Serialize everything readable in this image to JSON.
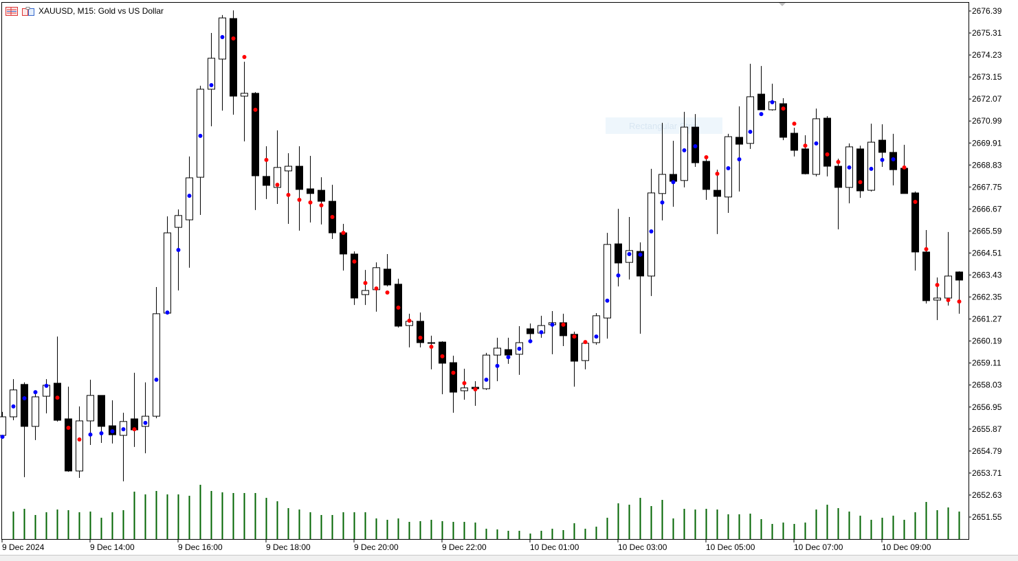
{
  "header": {
    "symbol_title": "XAUUSD, M15:  Gold vs US Dollar",
    "icons": [
      "chart-list-icon",
      "chart-type-icon"
    ]
  },
  "annotation": {
    "label": "Rectangular Strip"
  },
  "colors": {
    "bull_body": "#ffffff",
    "bear_body": "#000000",
    "wick": "#000000",
    "dot_up": "#0000ff",
    "dot_down": "#ff0000",
    "volume": "#006400"
  },
  "chart_data": {
    "type": "candlestick",
    "symbol": "XAUUSD",
    "timeframe": "M15",
    "ylim": [
      2651.0,
      2676.9
    ],
    "y_ticks": [
      "2676.39",
      "2675.31",
      "2674.23",
      "2673.15",
      "2672.07",
      "2670.99",
      "2669.91",
      "2668.83",
      "2667.75",
      "2666.67",
      "2665.59",
      "2664.51",
      "2663.43",
      "2662.35",
      "2661.27",
      "2660.19",
      "2659.11",
      "2658.03",
      "2656.95",
      "2655.87",
      "2654.79",
      "2653.71",
      "2652.63",
      "2651.55"
    ],
    "x_ticks": [
      {
        "index": 0,
        "label": "9 Dec 2024"
      },
      {
        "index": 8,
        "label": "9 Dec 14:00"
      },
      {
        "index": 16,
        "label": "9 Dec 16:00"
      },
      {
        "index": 24,
        "label": "9 Dec 18:00"
      },
      {
        "index": 32,
        "label": "9 Dec 20:00"
      },
      {
        "index": 40,
        "label": "9 Dec 22:00"
      },
      {
        "index": 48,
        "label": "10 Dec 01:00"
      },
      {
        "index": 56,
        "label": "10 Dec 03:00"
      },
      {
        "index": 64,
        "label": "10 Dec 05:00"
      },
      {
        "index": 72,
        "label": "10 Dec 07:00"
      },
      {
        "index": 80,
        "label": "10 Dec 09:00"
      }
    ],
    "ohlc": [
      [
        2655.56,
        2656.71,
        2655.49,
        2656.47
      ],
      [
        2656.47,
        2658.32,
        2656.3,
        2657.79
      ],
      [
        2658.06,
        2658.16,
        2653.51,
        2656.0
      ],
      [
        2656.0,
        2657.72,
        2655.33,
        2657.45
      ],
      [
        2657.48,
        2658.32,
        2656.64,
        2658.02
      ],
      [
        2658.12,
        2660.41,
        2656.24,
        2656.3
      ],
      [
        2656.37,
        2657.95,
        2653.77,
        2653.81
      ],
      [
        2653.81,
        2656.98,
        2653.47,
        2656.27
      ],
      [
        2656.27,
        2658.29,
        2655.09,
        2657.52
      ],
      [
        2657.52,
        2657.52,
        2655.19,
        2656.0
      ],
      [
        2656.03,
        2657.28,
        2655.16,
        2655.59
      ],
      [
        2655.56,
        2656.67,
        2653.3,
        2656.24
      ],
      [
        2656.37,
        2658.63,
        2654.99,
        2655.83
      ],
      [
        2656.0,
        2658.16,
        2654.68,
        2656.5
      ],
      [
        2656.5,
        2662.84,
        2656.4,
        2661.53
      ],
      [
        2661.56,
        2666.31,
        2661.49,
        2665.5
      ],
      [
        2665.77,
        2666.65,
        2662.67,
        2666.35
      ],
      [
        2666.14,
        2669.25,
        2663.79,
        2668.2
      ],
      [
        2668.23,
        2672.72,
        2666.38,
        2672.55
      ],
      [
        2672.55,
        2675.31,
        2670.73,
        2674.07
      ],
      [
        2674.03,
        2676.19,
        2671.5,
        2676.05
      ],
      [
        2676.02,
        2676.42,
        2671.3,
        2672.21
      ],
      [
        2672.21,
        2673.9,
        2669.99,
        2672.35
      ],
      [
        2672.35,
        2672.41,
        2666.62,
        2668.3
      ],
      [
        2668.27,
        2669.75,
        2667.16,
        2667.83
      ],
      [
        2667.73,
        2670.53,
        2666.92,
        2668.71
      ],
      [
        2668.54,
        2669.41,
        2665.94,
        2668.77
      ],
      [
        2668.77,
        2669.75,
        2665.61,
        2667.63
      ],
      [
        2667.66,
        2669.28,
        2666.01,
        2667.43
      ],
      [
        2667.59,
        2668.23,
        2665.91,
        2667.05
      ],
      [
        2667.05,
        2667.86,
        2665.2,
        2665.5
      ],
      [
        2665.5,
        2665.94,
        2663.65,
        2664.46
      ],
      [
        2664.46,
        2664.59,
        2661.96,
        2662.3
      ],
      [
        2662.47,
        2663.68,
        2661.96,
        2662.67
      ],
      [
        2662.71,
        2664.05,
        2661.63,
        2663.79
      ],
      [
        2663.72,
        2664.46,
        2662.87,
        2662.94
      ],
      [
        2662.98,
        2663.25,
        2660.85,
        2660.92
      ],
      [
        2660.95,
        2661.53,
        2659.88,
        2661.16
      ],
      [
        2661.16,
        2661.59,
        2659.88,
        2660.11
      ],
      [
        2660.11,
        2660.45,
        2658.8,
        2660.11
      ],
      [
        2660.14,
        2660.18,
        2657.58,
        2659.1
      ],
      [
        2659.13,
        2659.47,
        2656.67,
        2657.68
      ],
      [
        2657.75,
        2658.83,
        2657.31,
        2657.89
      ],
      [
        2657.92,
        2658.22,
        2657.01,
        2657.85
      ],
      [
        2657.85,
        2659.61,
        2657.79,
        2659.5
      ],
      [
        2659.5,
        2660.35,
        2658.22,
        2659.84
      ],
      [
        2659.77,
        2660.35,
        2659.07,
        2659.5
      ],
      [
        2659.54,
        2660.92,
        2658.53,
        2660.11
      ],
      [
        2660.79,
        2661.05,
        2660.18,
        2660.55
      ],
      [
        2660.58,
        2661.43,
        2660.35,
        2660.95
      ],
      [
        2660.99,
        2661.66,
        2659.54,
        2661.09
      ],
      [
        2661.09,
        2661.53,
        2659.94,
        2660.45
      ],
      [
        2660.52,
        2660.65,
        2657.95,
        2659.2
      ],
      [
        2659.23,
        2660.11,
        2658.8,
        2660.08
      ],
      [
        2660.11,
        2661.56,
        2660.01,
        2661.43
      ],
      [
        2661.32,
        2665.5,
        2660.31,
        2664.93
      ],
      [
        2664.96,
        2666.68,
        2662.87,
        2664.02
      ],
      [
        2664.05,
        2666.28,
        2663.21,
        2664.63
      ],
      [
        2664.59,
        2665.03,
        2660.55,
        2663.38
      ],
      [
        2663.38,
        2668.64,
        2662.4,
        2667.46
      ],
      [
        2667.43,
        2670.9,
        2666.11,
        2668.37
      ],
      [
        2668.37,
        2670.02,
        2666.78,
        2668.03
      ],
      [
        2668.07,
        2671.44,
        2667.73,
        2670.69
      ],
      [
        2670.69,
        2671.33,
        2668.74,
        2668.94
      ],
      [
        2669.01,
        2669.14,
        2667.12,
        2667.63
      ],
      [
        2667.59,
        2668.6,
        2665.44,
        2667.29
      ],
      [
        2667.26,
        2670.36,
        2666.48,
        2670.22
      ],
      [
        2670.19,
        2671.71,
        2667.53,
        2669.85
      ],
      [
        2669.89,
        2673.8,
        2669.62,
        2672.18
      ],
      [
        2672.31,
        2673.69,
        2671.54,
        2671.54
      ],
      [
        2671.54,
        2672.82,
        2671.5,
        2671.94
      ],
      [
        2671.84,
        2672.11,
        2670.05,
        2670.19
      ],
      [
        2670.39,
        2670.66,
        2669.25,
        2669.55
      ],
      [
        2669.62,
        2670.29,
        2668.37,
        2668.4
      ],
      [
        2668.37,
        2671.6,
        2668.27,
        2671.1
      ],
      [
        2671.13,
        2671.23,
        2668.27,
        2668.77
      ],
      [
        2668.77,
        2669.14,
        2665.67,
        2667.73
      ],
      [
        2667.73,
        2669.89,
        2666.95,
        2669.72
      ],
      [
        2669.62,
        2669.78,
        2667.22,
        2667.56
      ],
      [
        2667.59,
        2670.86,
        2667.53,
        2669.95
      ],
      [
        2670.05,
        2670.83,
        2668.74,
        2669.45
      ],
      [
        2669.45,
        2670.36,
        2667.83,
        2668.6
      ],
      [
        2668.67,
        2669.82,
        2667.43,
        2667.43
      ],
      [
        2667.46,
        2667.53,
        2663.65,
        2664.56
      ],
      [
        2664.56,
        2665.64,
        2662.03,
        2662.17
      ],
      [
        2662.2,
        2663.31,
        2661.22,
        2662.3
      ],
      [
        2662.3,
        2665.54,
        2661.93,
        2663.38
      ],
      [
        2663.58,
        2663.61,
        2661.53,
        2663.18
      ]
    ],
    "ohlc_order": [
      "open",
      "high",
      "low",
      "close"
    ],
    "indicator_dots": {
      "values": [
        2655.49,
        2656.98,
        2657.38,
        2657.68,
        2657.99,
        2657.41,
        2655.93,
        2655.36,
        2655.6,
        2655.66,
        2655.76,
        2655.86,
        2655.86,
        2656.17,
        2658.29,
        2661.59,
        2664.66,
        2667.32,
        2670.26,
        2672.75,
        2675.11,
        2675.04,
        2674.13,
        2671.54,
        2669.08,
        2667.86,
        2667.36,
        2667.12,
        2666.99,
        2666.85,
        2666.28,
        2665.5,
        2664.09,
        2663.04,
        2662.77,
        2662.57,
        2661.83,
        2661.19,
        2660.35,
        2659.91,
        2659.44,
        2658.63,
        2658.12,
        2657.82,
        2658.29,
        2658.97,
        2659.4,
        2659.81,
        2660.18,
        2660.62,
        2660.99,
        2660.99,
        2660.41,
        2660.14,
        2660.41,
        2662.17,
        2663.41,
        2664.46,
        2664.43,
        2665.57,
        2666.99,
        2667.99,
        2669.55,
        2669.75,
        2669.21,
        2668.4,
        2668.67,
        2669.11,
        2670.46,
        2671.33,
        2671.91,
        2671.6,
        2670.86,
        2669.78,
        2669.89,
        2669.35,
        2668.98,
        2668.71,
        2667.99,
        2668.64,
        2669.08,
        2669.11,
        2668.71,
        2667.02,
        2664.7,
        2662.94,
        2662.2,
        2662.13
      ],
      "colors": [
        "b",
        "b",
        "b",
        "b",
        "b",
        "r",
        "r",
        "r",
        "b",
        "b",
        "b",
        "b",
        "r",
        "b",
        "b",
        "b",
        "b",
        "b",
        "b",
        "b",
        "b",
        "r",
        "r",
        "r",
        "r",
        "r",
        "r",
        "r",
        "r",
        "r",
        "r",
        "r",
        "r",
        "r",
        "r",
        "r",
        "r",
        "r",
        "r",
        "r",
        "r",
        "r",
        "r",
        "r",
        "b",
        "b",
        "b",
        "b",
        "b",
        "b",
        "b",
        "r",
        "r",
        "r",
        "b",
        "b",
        "b",
        "b",
        "b",
        "b",
        "b",
        "b",
        "b",
        "b",
        "r",
        "r",
        "b",
        "b",
        "b",
        "b",
        "b",
        "r",
        "r",
        "r",
        "b",
        "r",
        "r",
        "b",
        "r",
        "b",
        "b",
        "b",
        "r",
        "r",
        "r",
        "r",
        "r",
        "r"
      ]
    },
    "volume": {
      "start_index": 1,
      "values": [
        40,
        44,
        35,
        39,
        43,
        42,
        39,
        40,
        31,
        39,
        42,
        69,
        65,
        70,
        65,
        65,
        63,
        79,
        70,
        68,
        67,
        67,
        67,
        60,
        55,
        45,
        43,
        39,
        35,
        35,
        39,
        39,
        39,
        30,
        28,
        30,
        25,
        26,
        28,
        26,
        25,
        25,
        24,
        15,
        14,
        12,
        12,
        8,
        12,
        15,
        13,
        23,
        15,
        18,
        31,
        52,
        50,
        60,
        48,
        57,
        30,
        44,
        43,
        44,
        43,
        36,
        36,
        37,
        29,
        22,
        24,
        22,
        24,
        43,
        50,
        45,
        40,
        34,
        28,
        31,
        34,
        28,
        39,
        54,
        42,
        46,
        40
      ]
    },
    "grid": false
  }
}
